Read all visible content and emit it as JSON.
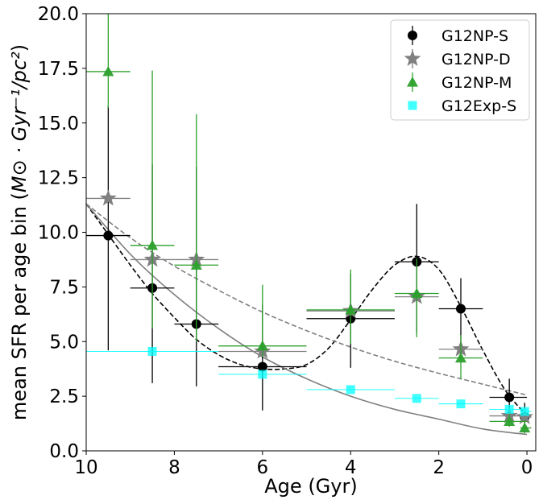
{
  "chart_data": {
    "type": "scatter",
    "xlabel": "Age (Gyr)",
    "ylabel_prefix": "mean SFR per age bin (",
    "ylabel_math": "M⊙ · Gyr⁻¹/pc²",
    "ylabel_suffix": ")",
    "xlim": [
      10,
      -0.2
    ],
    "ylim": [
      0,
      20
    ],
    "x_ticks": [
      "10",
      "8",
      "6",
      "4",
      "2",
      "0"
    ],
    "y_ticks": [
      "0.0",
      "2.5",
      "5.0",
      "7.5",
      "10.0",
      "12.5",
      "15.0",
      "17.5",
      "20.0"
    ],
    "legend_position": "upper-right",
    "series": [
      {
        "name": "G12NP-S",
        "marker": "circle",
        "color": "#000000",
        "points": [
          {
            "x": 9.5,
            "y": 9.85,
            "xlo": 9.0,
            "xhi": 10.0,
            "ylo": 4.6,
            "yhi": 15.8
          },
          {
            "x": 8.5,
            "y": 7.45,
            "xlo": 8.0,
            "xhi": 9.0,
            "ylo": 3.1,
            "yhi": 13.1
          },
          {
            "x": 7.5,
            "y": 5.8,
            "xlo": 7.0,
            "xhi": 8.0,
            "ylo": 2.95,
            "yhi": 13.0
          },
          {
            "x": 6.0,
            "y": 3.85,
            "xlo": 5.0,
            "xhi": 7.0,
            "ylo": 1.85,
            "yhi": 6.7
          },
          {
            "x": 4.0,
            "y": 6.05,
            "xlo": 3.0,
            "xhi": 5.0,
            "ylo": 3.8,
            "yhi": 8.1
          },
          {
            "x": 2.5,
            "y": 8.65,
            "xlo": 2.0,
            "xhi": 3.0,
            "ylo": 5.4,
            "yhi": 11.3
          },
          {
            "x": 1.5,
            "y": 6.5,
            "xlo": 1.0,
            "xhi": 2.0,
            "ylo": 4.4,
            "yhi": 7.9
          },
          {
            "x": 0.4,
            "y": 2.45,
            "xlo": 0.0,
            "xhi": 0.85,
            "ylo": 1.6,
            "yhi": 3.3
          },
          {
            "x": 0.05,
            "y": 1.55,
            "xlo": -0.1,
            "xhi": 0.15,
            "ylo": 1.0,
            "yhi": 2.2
          }
        ]
      },
      {
        "name": "G12NP-D",
        "marker": "star",
        "color": "#808080",
        "points": [
          {
            "x": 9.5,
            "y": 11.55,
            "xlo": 9.0,
            "xhi": 10.0
          },
          {
            "x": 8.5,
            "y": 8.75,
            "xlo": 8.0,
            "xhi": 9.0
          },
          {
            "x": 7.5,
            "y": 8.75,
            "xlo": 7.0,
            "xhi": 8.0
          },
          {
            "x": 6.0,
            "y": 4.55,
            "xlo": 5.0,
            "xhi": 7.0
          },
          {
            "x": 4.0,
            "y": 6.4,
            "xlo": 3.0,
            "xhi": 5.0
          },
          {
            "x": 2.5,
            "y": 7.05,
            "xlo": 2.0,
            "xhi": 3.0
          },
          {
            "x": 1.5,
            "y": 4.65,
            "xlo": 1.0,
            "xhi": 2.0
          },
          {
            "x": 0.4,
            "y": 1.6,
            "xlo": 0.0,
            "xhi": 0.85
          },
          {
            "x": 0.05,
            "y": 1.55,
            "xlo": -0.1,
            "xhi": 0.15
          }
        ]
      },
      {
        "name": "G12NP-M",
        "marker": "triangle",
        "color": "#2ca02c",
        "points": [
          {
            "x": 9.5,
            "y": 17.35,
            "xlo": 9.0,
            "xhi": 10.0,
            "ylo": 15.7,
            "yhi": 20.0
          },
          {
            "x": 8.5,
            "y": 9.4,
            "xlo": 8.0,
            "xhi": 9.0,
            "ylo": 5.6,
            "yhi": 17.4
          },
          {
            "x": 7.5,
            "y": 8.5,
            "xlo": 7.0,
            "xhi": 8.0,
            "ylo": 5.0,
            "yhi": 15.4
          },
          {
            "x": 6.0,
            "y": 4.8,
            "xlo": 5.0,
            "xhi": 7.0,
            "ylo": 4.3,
            "yhi": 7.6
          },
          {
            "x": 4.0,
            "y": 6.45,
            "xlo": 3.0,
            "xhi": 5.0,
            "ylo": 4.9,
            "yhi": 8.3
          },
          {
            "x": 2.5,
            "y": 7.2,
            "xlo": 2.0,
            "xhi": 3.0,
            "ylo": 5.2,
            "yhi": 8.8
          },
          {
            "x": 1.5,
            "y": 4.25,
            "xlo": 1.0,
            "xhi": 2.0,
            "ylo": 3.3,
            "yhi": 5.3
          },
          {
            "x": 0.4,
            "y": 1.35,
            "xlo": 0.0,
            "xhi": 0.85,
            "ylo": 1.1,
            "yhi": 1.7
          },
          {
            "x": 0.05,
            "y": 1.05,
            "xlo": -0.1,
            "xhi": 0.15,
            "ylo": 0.8,
            "yhi": 1.3
          }
        ]
      },
      {
        "name": "G12Exp-S",
        "marker": "square",
        "color": "#00ffff",
        "points": [
          {
            "x": 8.5,
            "y": 4.55,
            "xlo": 7.0,
            "xhi": 10.0
          },
          {
            "x": 6.0,
            "y": 3.5,
            "xlo": 5.0,
            "xhi": 7.0
          },
          {
            "x": 4.0,
            "y": 2.8,
            "xlo": 3.0,
            "xhi": 5.0
          },
          {
            "x": 2.5,
            "y": 2.4,
            "xlo": 2.0,
            "xhi": 3.0
          },
          {
            "x": 1.5,
            "y": 2.15,
            "xlo": 1.0,
            "xhi": 2.0
          },
          {
            "x": 0.4,
            "y": 1.9,
            "xlo": 0.0,
            "xhi": 0.85
          },
          {
            "x": 0.05,
            "y": 1.8,
            "xlo": -0.1,
            "xhi": 0.15
          }
        ]
      }
    ],
    "curves": [
      {
        "style": "dashed",
        "color": "#000000",
        "points": [
          [
            10,
            11.3
          ],
          [
            9.5,
            9.9
          ],
          [
            9,
            8.5
          ],
          [
            8.5,
            7.2
          ],
          [
            8,
            6.1
          ],
          [
            7.5,
            5.1
          ],
          [
            7,
            4.4
          ],
          [
            6.5,
            3.95
          ],
          [
            6,
            3.75
          ],
          [
            5.5,
            3.75
          ],
          [
            5,
            3.95
          ],
          [
            4.5,
            4.7
          ],
          [
            4,
            6.0
          ],
          [
            3.5,
            7.4
          ],
          [
            3,
            8.5
          ],
          [
            2.5,
            8.9
          ],
          [
            2,
            8.3
          ],
          [
            1.5,
            6.6
          ],
          [
            1,
            4.6
          ],
          [
            0.5,
            2.8
          ],
          [
            0,
            1.6
          ]
        ]
      },
      {
        "style": "dashed",
        "color": "#808080",
        "points": [
          [
            10,
            11.3
          ],
          [
            9,
            9.75
          ],
          [
            8,
            8.45
          ],
          [
            7,
            7.35
          ],
          [
            6,
            6.35
          ],
          [
            5,
            5.5
          ],
          [
            4,
            4.75
          ],
          [
            3,
            4.1
          ],
          [
            2,
            3.55
          ],
          [
            1,
            3.05
          ],
          [
            0,
            2.55
          ]
        ]
      },
      {
        "style": "solid",
        "color": "#808080",
        "points": [
          [
            10,
            11.3
          ],
          [
            9,
            9.0
          ],
          [
            8,
            7.15
          ],
          [
            7,
            5.6
          ],
          [
            6,
            4.3
          ],
          [
            5,
            3.3
          ],
          [
            4,
            2.5
          ],
          [
            3,
            1.9
          ],
          [
            2,
            1.45
          ],
          [
            1,
            1.0
          ],
          [
            0,
            0.75
          ]
        ]
      }
    ]
  }
}
